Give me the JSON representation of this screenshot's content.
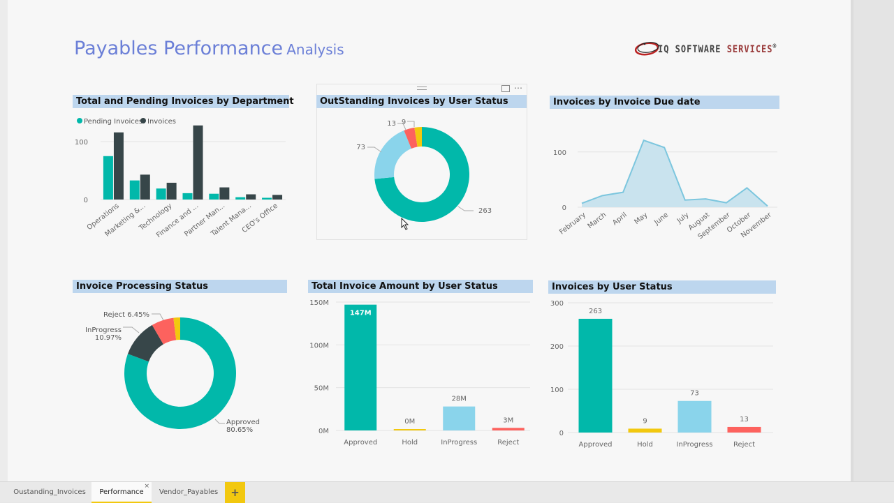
{
  "report": {
    "title_main": "Payables Performance",
    "title_sub": "Analysis",
    "logo": {
      "left": "IQ SOFTWARE ",
      "right": "SERVICES",
      "mark": "®"
    }
  },
  "colors": {
    "teal": "#01b8aa",
    "dark": "#374649",
    "red": "#fd625e",
    "yellow": "#f2c80f",
    "lightblue": "#8ad4eb",
    "header_bg": "#bdd6ee",
    "title": "#6b7fd7"
  },
  "visual_header": {
    "more_label": "⋯"
  },
  "tabs": [
    {
      "label": "Oustanding_Invoices",
      "active": false
    },
    {
      "label": "Performance",
      "active": true,
      "close": "×"
    },
    {
      "label": "Vendor_Payables",
      "active": false
    }
  ],
  "add_tab_label": "+",
  "chart_data": [
    {
      "id": "dept",
      "type": "bar",
      "title": "Total and Pending Invoices by Department",
      "legend": [
        "Pending Invoices",
        "Invoices"
      ],
      "legend_position": "top-left",
      "categories": [
        "Operations",
        "Marketing &...",
        "Technology",
        "Finance and ...",
        "Partner Man...",
        "Talent Mana...",
        "CEO's Office"
      ],
      "series": [
        {
          "name": "Pending Invoices",
          "values": [
            75,
            33,
            19,
            11,
            10,
            4,
            3
          ]
        },
        {
          "name": "Invoices",
          "values": [
            116,
            43,
            29,
            128,
            21,
            9,
            8
          ]
        }
      ],
      "yticks": [
        0,
        100
      ],
      "ylim": [
        0,
        135
      ],
      "grid": true
    },
    {
      "id": "outstanding",
      "type": "pie",
      "title": "OutStanding Invoices by User Status",
      "categories": [
        "Approved",
        "InProgress",
        "Reject",
        "Hold"
      ],
      "values": [
        263,
        73,
        13,
        9
      ],
      "labels": [
        "263",
        "73",
        "13",
        "9"
      ]
    },
    {
      "id": "duedate",
      "type": "area",
      "title": "Invoices by Invoice Due date",
      "categories": [
        "February",
        "March",
        "April",
        "May",
        "June",
        "July",
        "August",
        "September",
        "October",
        "November"
      ],
      "values": [
        7,
        21,
        27,
        121,
        108,
        13,
        15,
        8,
        35,
        2
      ],
      "yticks": [
        0,
        100
      ],
      "ylim": [
        0,
        130
      ],
      "grid": true
    },
    {
      "id": "processing",
      "type": "pie",
      "title": "Invoice Processing Status",
      "categories": [
        "Approved",
        "InProgress",
        "Reject",
        "Hold"
      ],
      "values": [
        80.65,
        10.97,
        6.45,
        1.93
      ],
      "labels": [
        "Approved 80.65%",
        "InProgress 10.97%",
        "Reject 6.45%",
        ""
      ]
    },
    {
      "id": "amount",
      "type": "bar",
      "title": "Total Invoice Amount by User Status",
      "categories": [
        "Approved",
        "Hold",
        "InProgress",
        "Reject"
      ],
      "values": [
        147,
        0.3,
        28,
        3
      ],
      "data_labels": [
        "147M",
        "0M",
        "28M",
        "3M"
      ],
      "yticks": [
        "0M",
        "50M",
        "100M",
        "150M"
      ],
      "ylim": [
        0,
        150
      ],
      "unit": "M",
      "grid": true
    },
    {
      "id": "count",
      "type": "bar",
      "title": "Invoices by User Status",
      "categories": [
        "Approved",
        "Hold",
        "InProgress",
        "Reject"
      ],
      "values": [
        263,
        9,
        73,
        13
      ],
      "data_labels": [
        "263",
        "9",
        "73",
        "13"
      ],
      "yticks": [
        "0",
        "100",
        "200",
        "300"
      ],
      "ylim": [
        0,
        300
      ],
      "grid": true
    }
  ]
}
